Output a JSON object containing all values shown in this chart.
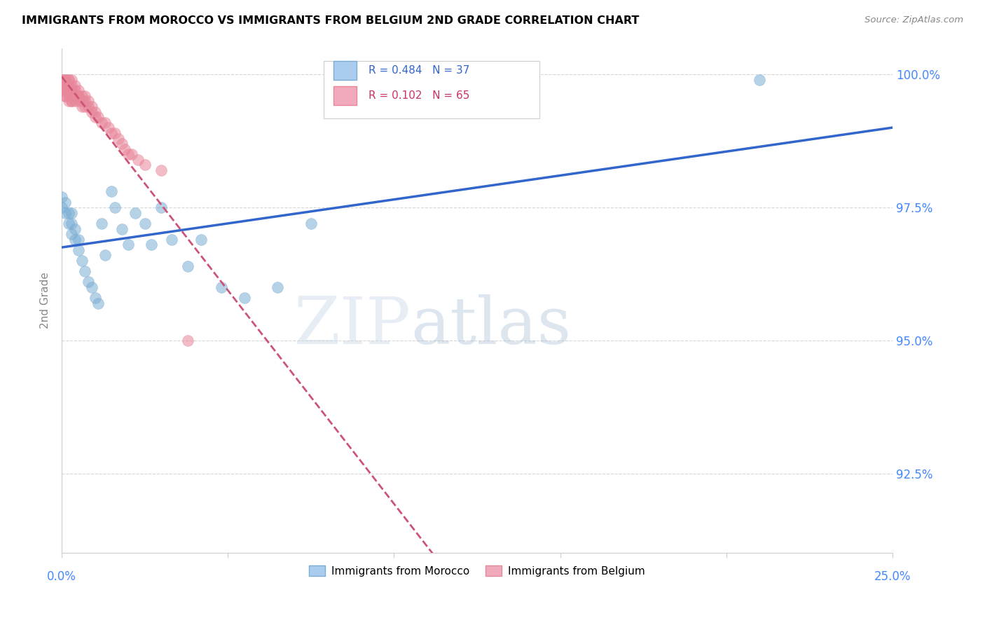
{
  "title": "IMMIGRANTS FROM MOROCCO VS IMMIGRANTS FROM BELGIUM 2ND GRADE CORRELATION CHART",
  "source": "Source: ZipAtlas.com",
  "ylabel": "2nd Grade",
  "xlim": [
    0.0,
    0.25
  ],
  "ylim": [
    0.91,
    1.005
  ],
  "xticks": [
    0.0,
    0.05,
    0.1,
    0.15,
    0.2,
    0.25
  ],
  "yticks": [
    0.925,
    0.95,
    0.975,
    1.0
  ],
  "ytick_labels": [
    "92.5%",
    "95.0%",
    "97.5%",
    "100.0%"
  ],
  "morocco_color": "#7aadd4",
  "belgium_color": "#e8869a",
  "morocco_R": 0.484,
  "morocco_N": 37,
  "belgium_R": 0.102,
  "belgium_N": 65,
  "watermark_zip": "ZIP",
  "watermark_atlas": "atlas",
  "legend_label_morocco": "Immigrants from Morocco",
  "legend_label_belgium": "Immigrants from Belgium",
  "morocco_x": [
    0.0,
    0.0,
    0.001,
    0.001,
    0.002,
    0.002,
    0.003,
    0.003,
    0.003,
    0.004,
    0.004,
    0.005,
    0.005,
    0.006,
    0.007,
    0.008,
    0.009,
    0.01,
    0.011,
    0.012,
    0.013,
    0.015,
    0.016,
    0.018,
    0.02,
    0.022,
    0.025,
    0.027,
    0.03,
    0.033,
    0.038,
    0.042,
    0.048,
    0.055,
    0.065,
    0.075,
    0.21
  ],
  "morocco_y": [
    0.975,
    0.977,
    0.974,
    0.976,
    0.972,
    0.974,
    0.97,
    0.972,
    0.974,
    0.969,
    0.971,
    0.967,
    0.969,
    0.965,
    0.963,
    0.961,
    0.96,
    0.958,
    0.957,
    0.972,
    0.966,
    0.978,
    0.975,
    0.971,
    0.968,
    0.974,
    0.972,
    0.968,
    0.975,
    0.969,
    0.964,
    0.969,
    0.96,
    0.958,
    0.96,
    0.972,
    0.999
  ],
  "belgium_x": [
    0.0,
    0.0,
    0.0,
    0.0,
    0.0,
    0.001,
    0.001,
    0.001,
    0.001,
    0.001,
    0.001,
    0.001,
    0.001,
    0.001,
    0.002,
    0.002,
    0.002,
    0.002,
    0.002,
    0.002,
    0.002,
    0.002,
    0.003,
    0.003,
    0.003,
    0.003,
    0.003,
    0.003,
    0.003,
    0.004,
    0.004,
    0.004,
    0.004,
    0.004,
    0.005,
    0.005,
    0.005,
    0.005,
    0.006,
    0.006,
    0.006,
    0.007,
    0.007,
    0.007,
    0.008,
    0.008,
    0.009,
    0.009,
    0.01,
    0.01,
    0.011,
    0.012,
    0.013,
    0.014,
    0.015,
    0.016,
    0.017,
    0.018,
    0.019,
    0.02,
    0.021,
    0.023,
    0.025,
    0.03,
    0.038
  ],
  "belgium_y": [
    0.999,
    0.999,
    0.998,
    0.998,
    0.997,
    0.999,
    0.999,
    0.999,
    0.998,
    0.998,
    0.997,
    0.997,
    0.996,
    0.996,
    0.999,
    0.999,
    0.998,
    0.998,
    0.997,
    0.997,
    0.996,
    0.995,
    0.999,
    0.998,
    0.997,
    0.997,
    0.996,
    0.995,
    0.995,
    0.998,
    0.997,
    0.996,
    0.996,
    0.995,
    0.997,
    0.996,
    0.996,
    0.995,
    0.996,
    0.995,
    0.994,
    0.996,
    0.995,
    0.994,
    0.995,
    0.994,
    0.994,
    0.993,
    0.993,
    0.992,
    0.992,
    0.991,
    0.991,
    0.99,
    0.989,
    0.989,
    0.988,
    0.987,
    0.986,
    0.985,
    0.985,
    0.984,
    0.983,
    0.982,
    0.95
  ]
}
